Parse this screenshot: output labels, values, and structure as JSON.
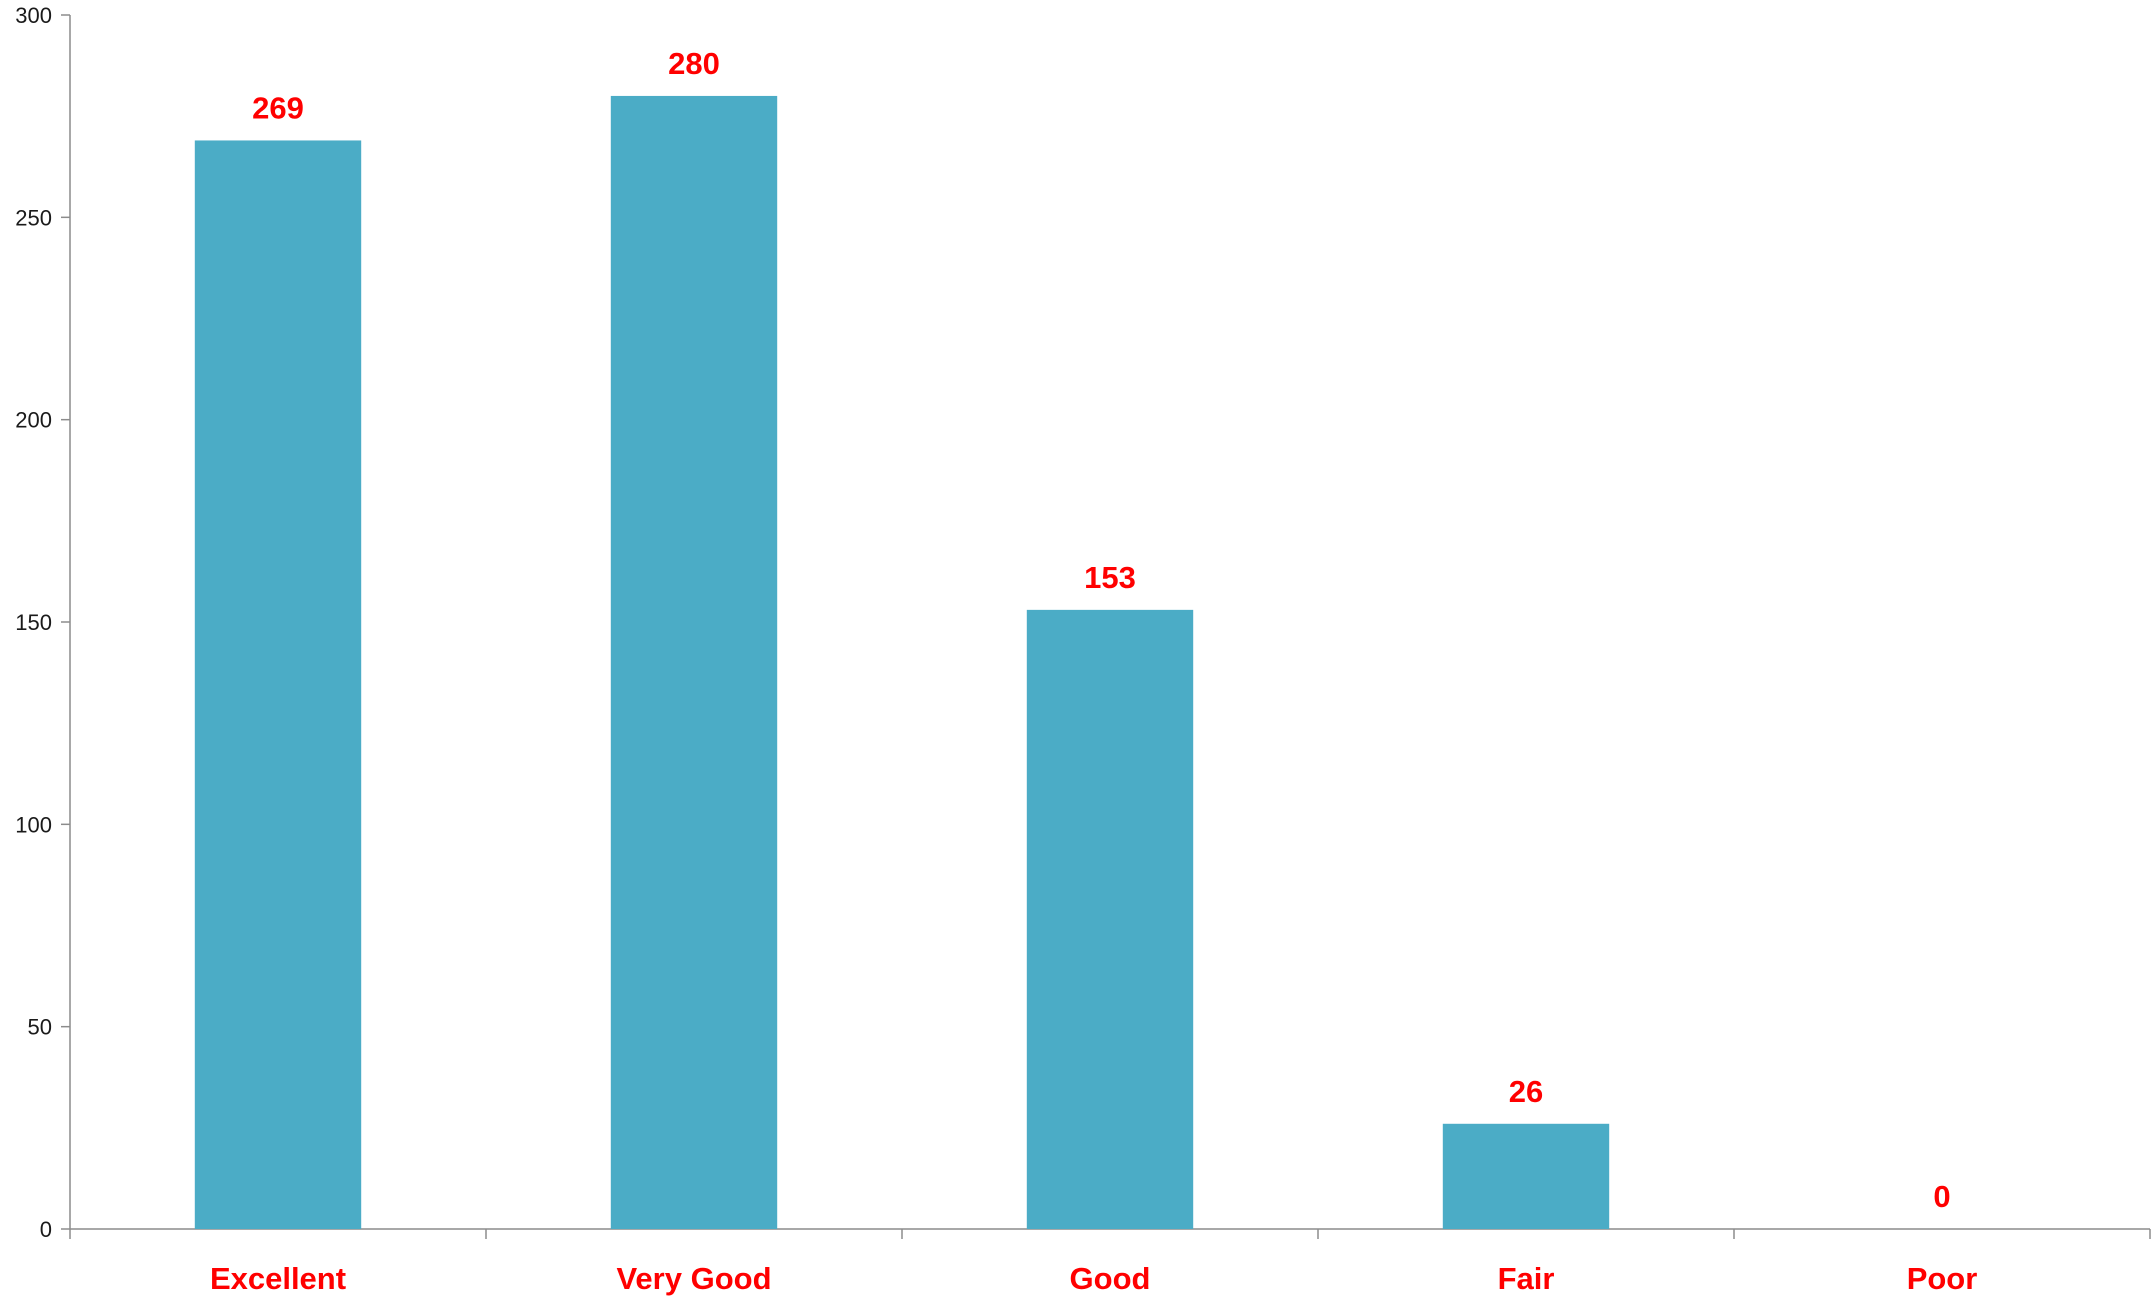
{
  "chart_data": {
    "type": "bar",
    "categories": [
      "Excellent",
      "Very Good",
      "Good",
      "Fair",
      "Poor"
    ],
    "values": [
      269,
      280,
      153,
      26,
      0
    ],
    "title": "",
    "xlabel": "",
    "ylabel": "",
    "ylim": [
      0,
      300
    ],
    "yticks": [
      0,
      50,
      100,
      150,
      200,
      250,
      300
    ],
    "grid": false,
    "legend": "none",
    "colors": {
      "bar": "#4bacc6",
      "data_label": "#ff0000",
      "category_label": "#ff0000",
      "axis": "#8c8c8c",
      "tick_label": "#1a1a1a"
    }
  }
}
